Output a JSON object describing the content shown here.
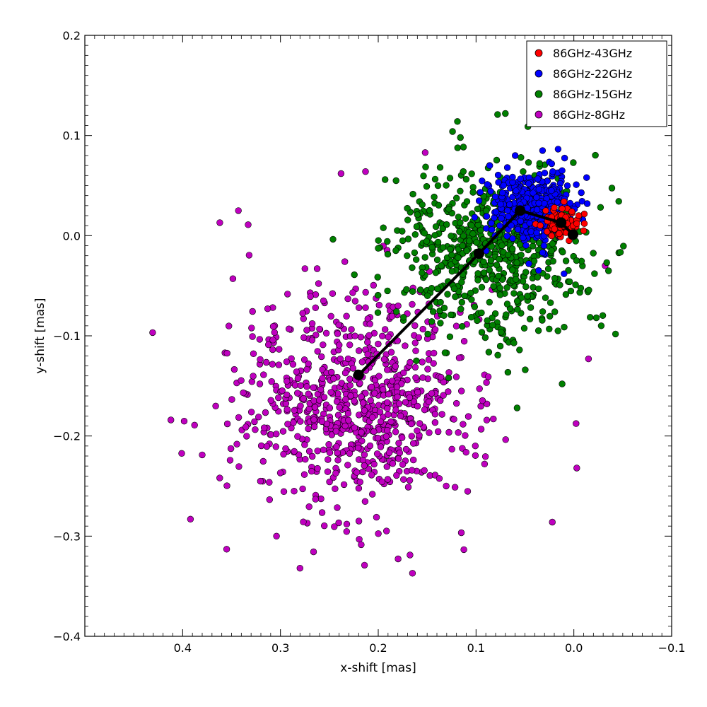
{
  "chart_data": {
    "type": "scatter",
    "title": "",
    "xlabel": "x-shift [mas]",
    "ylabel": "y-shift [mas]",
    "xlim": [
      0.5,
      -0.1
    ],
    "ylim": [
      -0.4,
      0.2
    ],
    "x_inverted": true,
    "x_ticks": [
      0.4,
      0.3,
      0.2,
      0.1,
      0.0,
      -0.1
    ],
    "x_tick_labels": [
      "0.4",
      "0.3",
      "0.2",
      "0.1",
      "0.0",
      "−0.1"
    ],
    "y_ticks": [
      0.2,
      0.1,
      0.0,
      -0.1,
      -0.2,
      -0.3,
      -0.4
    ],
    "y_tick_labels": [
      "0.2",
      "0.1",
      "0.0",
      "−0.1",
      "−0.2",
      "−0.3",
      "−0.4"
    ],
    "grid": false,
    "legend_position": "top-right",
    "series": [
      {
        "name": "86GHz-43GHz",
        "color": "#ff0000",
        "distribution": {
          "center": [
            0.013,
            0.013
          ],
          "spread": [
            0.008,
            0.006
          ],
          "count": 120
        },
        "points": [
          [
            0.012,
            0.027
          ],
          [
            0.002,
            0.024
          ],
          [
            -0.005,
            0.02
          ],
          [
            -0.01,
            0.005
          ],
          [
            0.008,
            0.003
          ],
          [
            0.02,
            0.028
          ],
          [
            0.005,
            -0.005
          ],
          [
            -0.003,
            0.012
          ],
          [
            0.015,
            0.002
          ],
          [
            0.01,
            0.034
          ]
        ]
      },
      {
        "name": "86GHz-22GHz",
        "color": "#0000ff",
        "distribution": {
          "center": [
            0.042,
            0.03
          ],
          "spread": [
            0.022,
            0.018
          ],
          "count": 380
        },
        "points": [
          [
            0.06,
            0.08
          ],
          [
            0.032,
            0.085
          ],
          [
            0.068,
            0.068
          ],
          [
            0.086,
            0.07
          ],
          [
            0.012,
            0.065
          ],
          [
            -0.013,
            0.058
          ],
          [
            0.01,
            -0.038
          ],
          [
            0.046,
            -0.028
          ],
          [
            0.023,
            0.045
          ],
          [
            0.04,
            0.01
          ]
        ]
      },
      {
        "name": "86GHz-15GHz",
        "color": "#007f00",
        "distribution": {
          "center": [
            0.085,
            -0.015
          ],
          "spread": [
            0.048,
            0.042
          ],
          "count": 650
        },
        "points": [
          [
            0.119,
            0.114
          ],
          [
            0.078,
            0.121
          ],
          [
            0.07,
            0.122
          ],
          [
            0.116,
            0.098
          ],
          [
            0.124,
            0.104
          ],
          [
            -0.023,
            -0.082
          ],
          [
            -0.028,
            -0.09
          ],
          [
            0.058,
            -0.172
          ],
          [
            0.012,
            -0.148
          ],
          [
            0.193,
            0.056
          ],
          [
            0.16,
            0.021
          ],
          [
            0.175,
            -0.005
          ]
        ]
      },
      {
        "name": "86GHz-8GHz",
        "color": "#bf00bf",
        "distribution": {
          "center": [
            0.225,
            -0.165
          ],
          "spread": [
            0.058,
            0.055
          ],
          "count": 800
        },
        "points": [
          [
            0.343,
            0.025
          ],
          [
            0.412,
            -0.184
          ],
          [
            0.392,
            -0.283
          ],
          [
            0.165,
            -0.337
          ],
          [
            0.28,
            -0.332
          ],
          [
            0.214,
            -0.329
          ],
          [
            0.362,
            0.013
          ],
          [
            0.333,
            0.011
          ],
          [
            0.238,
            0.062
          ],
          [
            0.213,
            0.064
          ],
          [
            0.152,
            0.083
          ],
          [
            -0.003,
            -0.232
          ],
          [
            0.022,
            -0.286
          ],
          [
            -0.015,
            -0.123
          ],
          [
            -0.032,
            -0.03
          ],
          [
            0.355,
            -0.313
          ],
          [
            0.304,
            -0.3
          ]
        ]
      }
    ],
    "mean_path": {
      "color": "#000000",
      "points": [
        [
          0.001,
          0.001
        ],
        [
          0.013,
          0.013
        ],
        [
          0.055,
          0.025
        ],
        [
          0.097,
          -0.018
        ],
        [
          0.22,
          -0.139
        ]
      ]
    }
  }
}
